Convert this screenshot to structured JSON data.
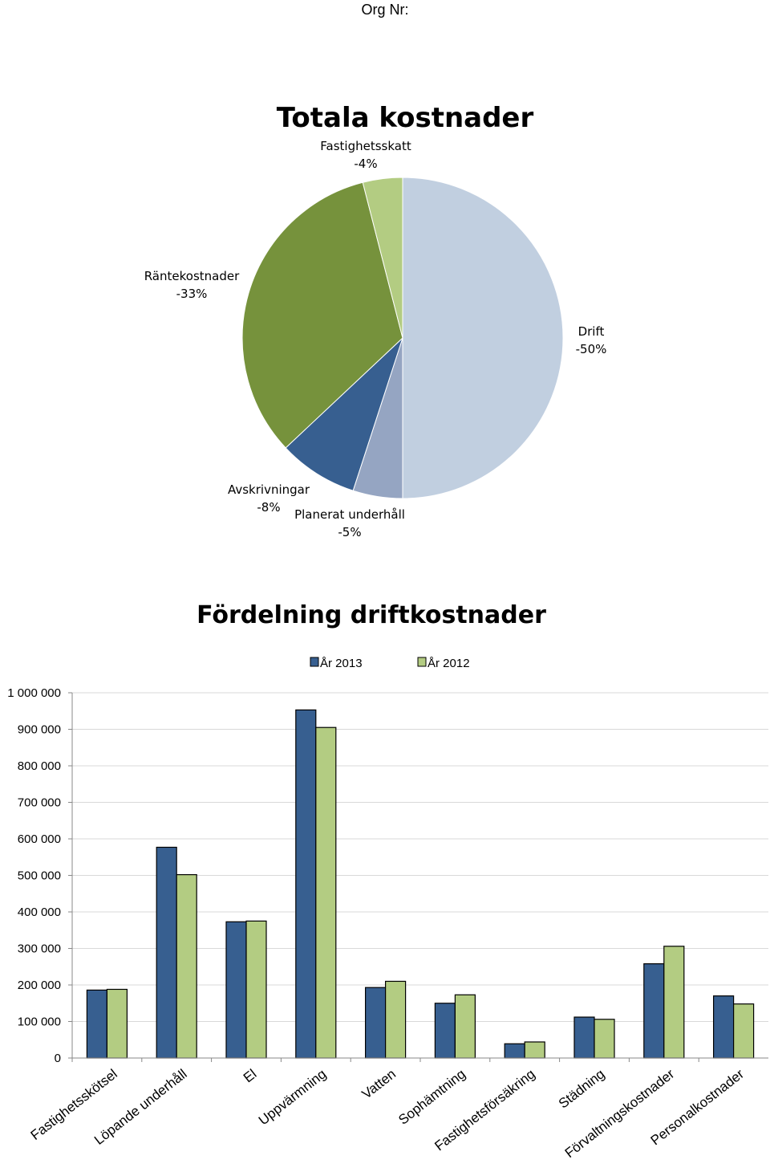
{
  "header": {
    "org_label": "Org Nr:"
  },
  "chart_data": [
    {
      "type": "pie",
      "title": "Totala kostnader",
      "slices": [
        {
          "label": "Drift",
          "value": 50,
          "value_label": "-50%",
          "color": "#c1cfe0"
        },
        {
          "label": "Planerat underhåll",
          "value": 5,
          "value_label": "-5%",
          "color": "#95a5c2"
        },
        {
          "label": "Avskrivningar",
          "value": 8,
          "value_label": "-8%",
          "color": "#375f90"
        },
        {
          "label": "Räntekostnader",
          "value": 33,
          "value_label": "-33%",
          "color": "#76923c"
        },
        {
          "label": "Fastighetsskatt",
          "value": 4,
          "value_label": "-4%",
          "color": "#b3cc82"
        }
      ]
    },
    {
      "type": "bar",
      "title": "Fördelning driftkostnader",
      "legend_position": "top",
      "ylim": [
        0,
        1000000
      ],
      "yticks": [
        "0",
        "100 000",
        "200 000",
        "300 000",
        "400 000",
        "500 000",
        "600 000",
        "700 000",
        "800 000",
        "900 000",
        "1 000 000"
      ],
      "grid": true,
      "categories": [
        "Fastighetsskötsel",
        "Löpande underhåll",
        "El",
        "Uppvärmning",
        "Vatten",
        "Sophämtning",
        "Fastighetsförsäkring",
        "Städning",
        "Förvaltningskostnader",
        "Personalkostnader"
      ],
      "series": [
        {
          "name": "År 2013",
          "color": "#375f90",
          "values": [
            186000,
            577000,
            373000,
            953000,
            193000,
            150000,
            39000,
            112000,
            258000,
            170000
          ]
        },
        {
          "name": "År 2012",
          "color": "#b3cc82",
          "values": [
            188000,
            502000,
            375000,
            905000,
            210000,
            173000,
            44000,
            106000,
            306000,
            148000
          ]
        }
      ]
    }
  ]
}
